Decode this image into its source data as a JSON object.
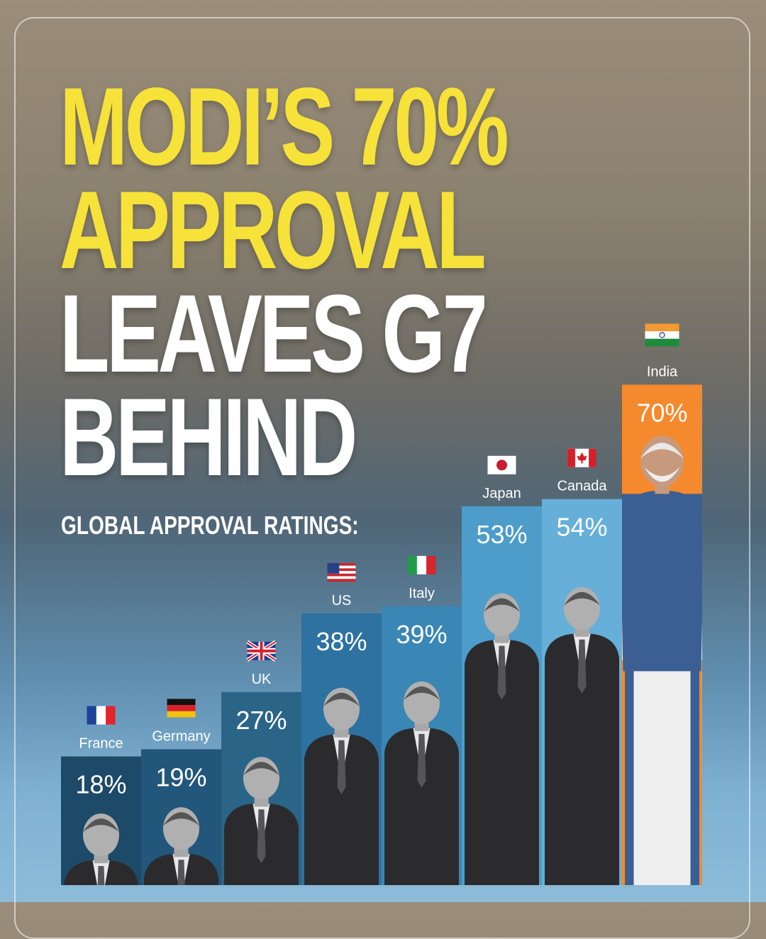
{
  "headline": {
    "line1": "MODI’S 70%",
    "line2": "APPROVAL",
    "line3": "LEAVES G7",
    "line4": "BEHIND"
  },
  "subtitle": "GLOBAL APPROVAL RATINGS:",
  "colors": {
    "headline_yellow": "#f6e238",
    "india_bar": "#f5892d"
  },
  "chart_data": {
    "type": "bar",
    "title": "GLOBAL APPROVAL RATINGS:",
    "xlabel": "",
    "ylabel": "",
    "categories": [
      "France",
      "Germany",
      "UK",
      "US",
      "Italy",
      "Japan",
      "Canada",
      "India"
    ],
    "values": [
      18,
      19,
      27,
      38,
      39,
      53,
      54,
      70
    ],
    "value_labels": [
      "18%",
      "19%",
      "27%",
      "38%",
      "39%",
      "53%",
      "54%",
      "70%"
    ],
    "ylim": [
      0,
      100
    ],
    "grid": false,
    "legend": "none",
    "bar_colors": [
      "#1d4a68",
      "#22567a",
      "#2a6487",
      "#2d72a0",
      "#3a86b5",
      "#4d9cca",
      "#66afd8",
      "#f5892d"
    ],
    "flags": [
      "france-flag",
      "germany-flag",
      "uk-flag",
      "us-flag",
      "italy-flag",
      "japan-flag",
      "canada-flag",
      "india-flag"
    ]
  }
}
